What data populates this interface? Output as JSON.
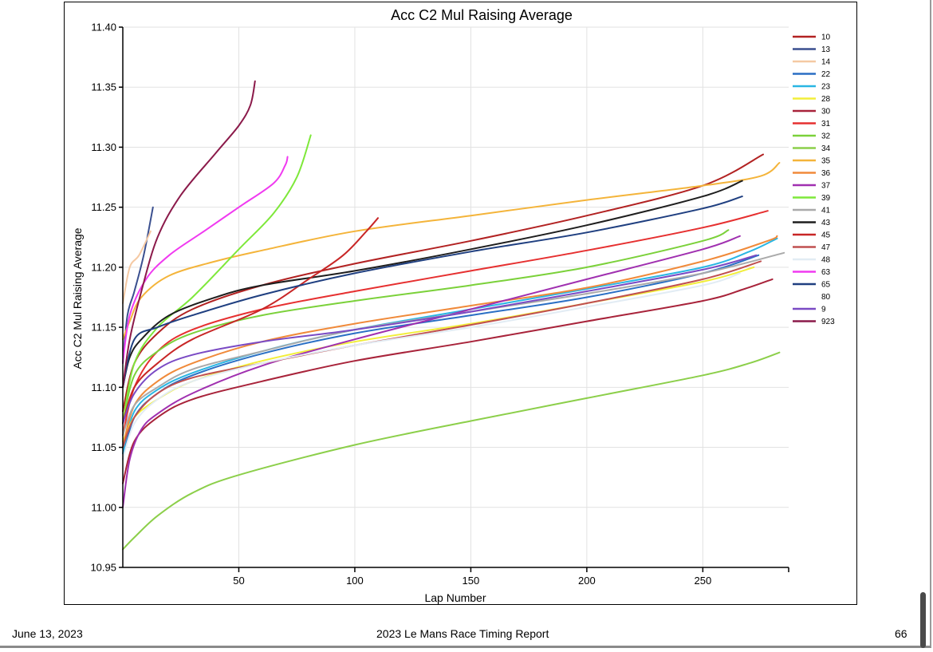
{
  "footer": {
    "date": "June 13, 2023",
    "report_title": "2023 Le Mans Race Timing Report",
    "page_number": "66"
  },
  "chart_data": {
    "type": "line",
    "title": "Acc C2 Mul Raising Average",
    "xlabel": "Lap Number",
    "ylabel": "Acc C2 Mul Raising Average",
    "xlim": [
      0,
      287
    ],
    "ylim": [
      10.95,
      11.4
    ],
    "xticks": [
      50,
      100,
      150,
      200,
      250
    ],
    "yticks": [
      "10.95",
      "11.00",
      "11.05",
      "11.10",
      "11.15",
      "11.20",
      "11.25",
      "11.30",
      "11.35",
      "11.40"
    ],
    "grid": true,
    "legend_position": "right",
    "series": [
      {
        "name": "10",
        "color": "#b22222",
        "points": [
          [
            0,
            11.08
          ],
          [
            5,
            11.12
          ],
          [
            15,
            11.145
          ],
          [
            30,
            11.165
          ],
          [
            60,
            11.185
          ],
          [
            100,
            11.203
          ],
          [
            150,
            11.222
          ],
          [
            200,
            11.243
          ],
          [
            250,
            11.268
          ],
          [
            276,
            11.294
          ]
        ]
      },
      {
        "name": "13",
        "color": "#3a4f8f",
        "points": [
          [
            0,
            11.12
          ],
          [
            2,
            11.16
          ],
          [
            5,
            11.18
          ],
          [
            9,
            11.21
          ],
          [
            13,
            11.25
          ]
        ]
      },
      {
        "name": "14",
        "color": "#f5c9a3",
        "points": [
          [
            0,
            11.17
          ],
          [
            3,
            11.2
          ],
          [
            7,
            11.21
          ],
          [
            12,
            11.23
          ]
        ]
      },
      {
        "name": "22",
        "color": "#2a6fc4",
        "points": [
          [
            0,
            11.04
          ],
          [
            5,
            11.075
          ],
          [
            15,
            11.095
          ],
          [
            30,
            11.11
          ],
          [
            60,
            11.128
          ],
          [
            100,
            11.145
          ],
          [
            150,
            11.16
          ],
          [
            200,
            11.175
          ],
          [
            250,
            11.195
          ],
          [
            274,
            11.21
          ]
        ]
      },
      {
        "name": "23",
        "color": "#29b6e3",
        "points": [
          [
            0,
            11.045
          ],
          [
            5,
            11.08
          ],
          [
            15,
            11.098
          ],
          [
            30,
            11.112
          ],
          [
            60,
            11.13
          ],
          [
            100,
            11.148
          ],
          [
            150,
            11.165
          ],
          [
            200,
            11.182
          ],
          [
            250,
            11.2
          ],
          [
            270,
            11.213
          ],
          [
            282,
            11.224
          ]
        ]
      },
      {
        "name": "28",
        "color": "#f2ee3a",
        "points": [
          [
            0,
            11.055
          ],
          [
            5,
            11.075
          ],
          [
            15,
            11.09
          ],
          [
            30,
            11.105
          ],
          [
            60,
            11.122
          ],
          [
            100,
            11.138
          ],
          [
            150,
            11.153
          ],
          [
            200,
            11.17
          ],
          [
            250,
            11.188
          ],
          [
            272,
            11.2
          ]
        ]
      },
      {
        "name": "30",
        "color": "#a8233a",
        "points": [
          [
            0,
            11.02
          ],
          [
            5,
            11.055
          ],
          [
            15,
            11.075
          ],
          [
            30,
            11.09
          ],
          [
            60,
            11.105
          ],
          [
            100,
            11.122
          ],
          [
            150,
            11.138
          ],
          [
            200,
            11.155
          ],
          [
            250,
            11.172
          ],
          [
            268,
            11.182
          ],
          [
            280,
            11.19
          ]
        ]
      },
      {
        "name": "31",
        "color": "#e63030",
        "points": [
          [
            0,
            11.06
          ],
          [
            5,
            11.1
          ],
          [
            15,
            11.13
          ],
          [
            30,
            11.148
          ],
          [
            60,
            11.165
          ],
          [
            100,
            11.18
          ],
          [
            150,
            11.197
          ],
          [
            200,
            11.214
          ],
          [
            250,
            11.233
          ],
          [
            278,
            11.247
          ]
        ]
      },
      {
        "name": "32",
        "color": "#7bd13a",
        "points": [
          [
            0,
            11.07
          ],
          [
            5,
            11.11
          ],
          [
            15,
            11.13
          ],
          [
            30,
            11.145
          ],
          [
            60,
            11.16
          ],
          [
            100,
            11.172
          ],
          [
            150,
            11.185
          ],
          [
            200,
            11.2
          ],
          [
            250,
            11.222
          ],
          [
            261,
            11.231
          ]
        ]
      },
      {
        "name": "34",
        "color": "#8ccf4a",
        "points": [
          [
            0,
            10.965
          ],
          [
            5,
            10.975
          ],
          [
            15,
            10.993
          ],
          [
            30,
            11.012
          ],
          [
            50,
            11.027
          ],
          [
            100,
            11.052
          ],
          [
            150,
            11.072
          ],
          [
            200,
            11.091
          ],
          [
            250,
            11.11
          ],
          [
            270,
            11.12
          ],
          [
            283,
            11.129
          ]
        ]
      },
      {
        "name": "35",
        "color": "#f4b43a",
        "points": [
          [
            0,
            11.14
          ],
          [
            3,
            11.155
          ],
          [
            8,
            11.175
          ],
          [
            20,
            11.193
          ],
          [
            40,
            11.205
          ],
          [
            60,
            11.214
          ],
          [
            100,
            11.23
          ],
          [
            150,
            11.243
          ],
          [
            200,
            11.256
          ],
          [
            250,
            11.268
          ],
          [
            275,
            11.276
          ],
          [
            283,
            11.287
          ]
        ]
      },
      {
        "name": "36",
        "color": "#f08a3a",
        "points": [
          [
            0,
            11.05
          ],
          [
            5,
            11.085
          ],
          [
            15,
            11.105
          ],
          [
            30,
            11.12
          ],
          [
            60,
            11.138
          ],
          [
            100,
            11.153
          ],
          [
            150,
            11.168
          ],
          [
            200,
            11.183
          ],
          [
            250,
            11.205
          ],
          [
            278,
            11.222
          ],
          [
            282,
            11.226
          ]
        ]
      },
      {
        "name": "37",
        "color": "#a030b0",
        "points": [
          [
            0,
            11.0
          ],
          [
            3,
            11.04
          ],
          [
            8,
            11.065
          ],
          [
            15,
            11.078
          ],
          [
            30,
            11.095
          ],
          [
            60,
            11.118
          ],
          [
            100,
            11.14
          ],
          [
            150,
            11.165
          ],
          [
            200,
            11.19
          ],
          [
            250,
            11.215
          ],
          [
            266,
            11.226
          ]
        ]
      },
      {
        "name": "39",
        "color": "#7ee83a",
        "points": [
          [
            0,
            11.07
          ],
          [
            5,
            11.12
          ],
          [
            15,
            11.15
          ],
          [
            30,
            11.175
          ],
          [
            50,
            11.215
          ],
          [
            65,
            11.245
          ],
          [
            75,
            11.275
          ],
          [
            81,
            11.31
          ]
        ]
      },
      {
        "name": "41",
        "color": "#aaaaaa",
        "points": [
          [
            0,
            11.06
          ],
          [
            5,
            11.085
          ],
          [
            15,
            11.1
          ],
          [
            30,
            11.115
          ],
          [
            60,
            11.13
          ],
          [
            100,
            11.148
          ],
          [
            150,
            11.163
          ],
          [
            200,
            11.178
          ],
          [
            250,
            11.195
          ],
          [
            285,
            11.212
          ]
        ]
      },
      {
        "name": "43",
        "color": "#1e1e1e",
        "points": [
          [
            0,
            11.1
          ],
          [
            3,
            11.125
          ],
          [
            8,
            11.14
          ],
          [
            20,
            11.16
          ],
          [
            40,
            11.175
          ],
          [
            60,
            11.185
          ],
          [
            100,
            11.197
          ],
          [
            150,
            11.215
          ],
          [
            200,
            11.235
          ],
          [
            250,
            11.259
          ],
          [
            267,
            11.272
          ]
        ]
      },
      {
        "name": "45",
        "color": "#c82626",
        "points": [
          [
            0,
            11.07
          ],
          [
            5,
            11.1
          ],
          [
            15,
            11.12
          ],
          [
            30,
            11.14
          ],
          [
            60,
            11.165
          ],
          [
            80,
            11.19
          ],
          [
            95,
            11.21
          ],
          [
            105,
            11.23
          ],
          [
            110,
            11.241
          ]
        ]
      },
      {
        "name": "47",
        "color": "#c05050",
        "points": [
          [
            0,
            11.05
          ],
          [
            5,
            11.075
          ],
          [
            15,
            11.095
          ],
          [
            30,
            11.108
          ],
          [
            60,
            11.12
          ],
          [
            100,
            11.135
          ],
          [
            150,
            11.152
          ],
          [
            200,
            11.17
          ],
          [
            250,
            11.19
          ],
          [
            275,
            11.205
          ]
        ]
      },
      {
        "name": "48",
        "color": "#e2ecf4",
        "points": [
          [
            0,
            11.04
          ],
          [
            5,
            11.07
          ],
          [
            15,
            11.09
          ],
          [
            30,
            11.105
          ],
          [
            60,
            11.12
          ],
          [
            100,
            11.135
          ],
          [
            150,
            11.15
          ],
          [
            200,
            11.167
          ],
          [
            250,
            11.185
          ],
          [
            266,
            11.195
          ]
        ]
      },
      {
        "name": "63",
        "color": "#f03af0",
        "points": [
          [
            0,
            11.12
          ],
          [
            3,
            11.16
          ],
          [
            10,
            11.19
          ],
          [
            20,
            11.21
          ],
          [
            35,
            11.23
          ],
          [
            50,
            11.25
          ],
          [
            65,
            11.27
          ],
          [
            70,
            11.285
          ],
          [
            71,
            11.292
          ]
        ]
      },
      {
        "name": "65",
        "color": "#1f3f80",
        "points": [
          [
            0,
            11.1
          ],
          [
            5,
            11.14
          ],
          [
            15,
            11.15
          ],
          [
            30,
            11.16
          ],
          [
            60,
            11.177
          ],
          [
            100,
            11.195
          ],
          [
            150,
            11.213
          ],
          [
            200,
            11.229
          ],
          [
            250,
            11.249
          ],
          [
            267,
            11.259
          ]
        ]
      },
      {
        "name": "80",
        "color": "#ffffff",
        "points": []
      },
      {
        "name": "9",
        "color": "#7a4ac4",
        "points": [
          [
            0,
            11.07
          ],
          [
            5,
            11.095
          ],
          [
            15,
            11.115
          ],
          [
            30,
            11.127
          ],
          [
            60,
            11.138
          ],
          [
            100,
            11.148
          ],
          [
            150,
            11.163
          ],
          [
            200,
            11.18
          ],
          [
            250,
            11.198
          ],
          [
            273,
            11.21
          ]
        ]
      },
      {
        "name": "923",
        "color": "#8b1a4a",
        "points": [
          [
            0,
            11.1
          ],
          [
            3,
            11.14
          ],
          [
            8,
            11.18
          ],
          [
            15,
            11.225
          ],
          [
            25,
            11.26
          ],
          [
            40,
            11.295
          ],
          [
            50,
            11.318
          ],
          [
            55,
            11.335
          ],
          [
            57,
            11.355
          ]
        ]
      }
    ]
  }
}
